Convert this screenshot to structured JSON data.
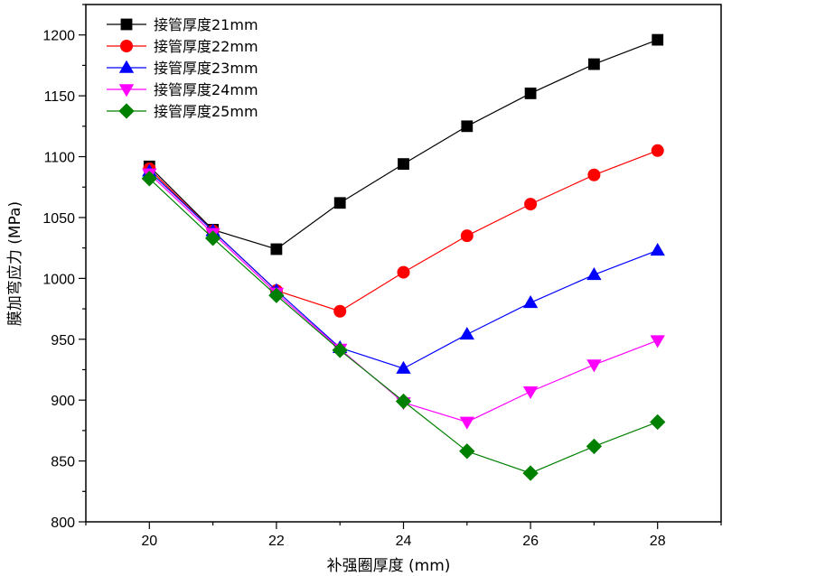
{
  "chart_data": {
    "type": "line",
    "title": "",
    "xlabel": "补强圈厚度 (mm)",
    "ylabel": "膜加弯应力 (MPa)",
    "xlim": [
      19,
      29
    ],
    "ylim": [
      800,
      1225
    ],
    "xticks": [
      20,
      22,
      24,
      26,
      28
    ],
    "yticks": [
      800,
      850,
      900,
      950,
      1000,
      1050,
      1100,
      1150,
      1200
    ],
    "legend_position": "top-left",
    "x": [
      20,
      21,
      22,
      23,
      24,
      25,
      26,
      27,
      28
    ],
    "series": [
      {
        "name": "接管厚度21mm",
        "color": "#000000",
        "marker": "square",
        "values": [
          1092,
          1040,
          1024,
          1062,
          1094,
          1125,
          1152,
          1176,
          1196
        ]
      },
      {
        "name": "接管厚度22mm",
        "color": "#ff0000",
        "marker": "circle",
        "values": [
          1090,
          1039,
          990,
          973,
          1005,
          1035,
          1061,
          1085,
          1105
        ]
      },
      {
        "name": "接管厚度23mm",
        "color": "#0000ff",
        "marker": "triangle-up",
        "values": [
          1088,
          1039,
          990,
          943,
          926,
          954,
          980,
          1003,
          1023
        ]
      },
      {
        "name": "接管厚度24mm",
        "color": "#ff00ff",
        "marker": "triangle-down",
        "values": [
          1086,
          1037,
          988,
          942,
          898,
          882,
          907,
          929,
          949
        ]
      },
      {
        "name": "接管厚度25mm",
        "color": "#008000",
        "marker": "diamond",
        "values": [
          1082,
          1033,
          986,
          941,
          899,
          858,
          840,
          862,
          882
        ]
      }
    ]
  }
}
